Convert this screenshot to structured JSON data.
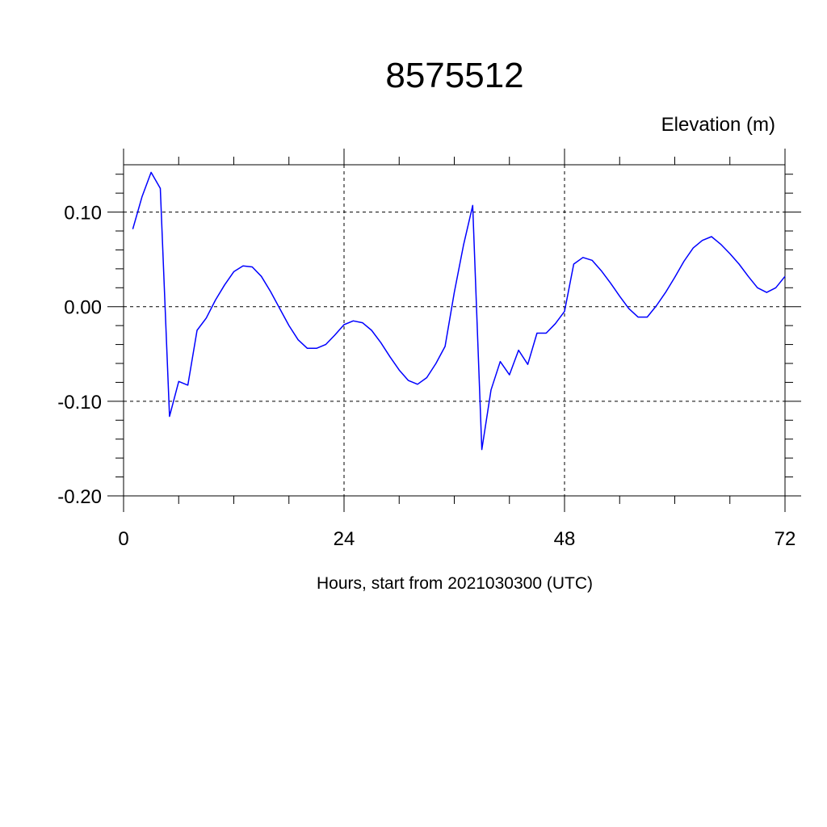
{
  "chart_data": {
    "type": "line",
    "title": "8575512",
    "units_label": "Elevation (m)",
    "xlabel": "Hours, start from 2021030300 (UTC)",
    "ylabel": "",
    "xlim": [
      0,
      72
    ],
    "ylim": [
      -0.2,
      0.15
    ],
    "x_ticks": [
      0,
      24,
      48,
      72
    ],
    "x_tick_labels": [
      "0",
      "24",
      "48",
      "72"
    ],
    "y_ticks": [
      0.1,
      0.0,
      -0.1,
      -0.2
    ],
    "y_tick_labels": [
      "0.10",
      "0.00",
      "-0.10",
      "-0.20"
    ],
    "grid": "dashed at major ticks",
    "series": [
      {
        "color": "#0000ff",
        "x": [
          1,
          2,
          3,
          4,
          5,
          6,
          7,
          8,
          9,
          10,
          11,
          12,
          13,
          14,
          15,
          16,
          17,
          18,
          19,
          20,
          21,
          22,
          23,
          24,
          25,
          26,
          27,
          28,
          29,
          30,
          31,
          32,
          33,
          34,
          35,
          36,
          37,
          38,
          39,
          40,
          41,
          42,
          43,
          44,
          45,
          46,
          47,
          48,
          49,
          50,
          51,
          52,
          53,
          54,
          55,
          56,
          57,
          58,
          59,
          60,
          61,
          62,
          63,
          64,
          65,
          66,
          67,
          68,
          69,
          70,
          71,
          72
        ],
        "y": [
          0.082,
          0.116,
          0.142,
          0.125,
          -0.116,
          -0.079,
          -0.083,
          -0.025,
          -0.012,
          0.007,
          0.023,
          0.037,
          0.043,
          0.042,
          0.032,
          0.016,
          -0.002,
          -0.02,
          -0.035,
          -0.044,
          -0.044,
          -0.04,
          -0.03,
          -0.019,
          -0.015,
          -0.017,
          -0.025,
          -0.038,
          -0.053,
          -0.067,
          -0.078,
          -0.082,
          -0.075,
          -0.06,
          -0.042,
          0.015,
          0.065,
          0.107,
          -0.151,
          -0.088,
          -0.058,
          -0.072,
          -0.046,
          -0.061,
          -0.028,
          -0.028,
          -0.018,
          -0.005,
          0.045,
          0.052,
          0.049,
          0.038,
          0.025,
          0.011,
          -0.002,
          -0.011,
          -0.011,
          0.001,
          0.015,
          0.031,
          0.048,
          0.062,
          0.07,
          0.074,
          0.066,
          0.056,
          0.045,
          0.032,
          0.02,
          0.015,
          0.02,
          0.032
        ]
      }
    ]
  }
}
